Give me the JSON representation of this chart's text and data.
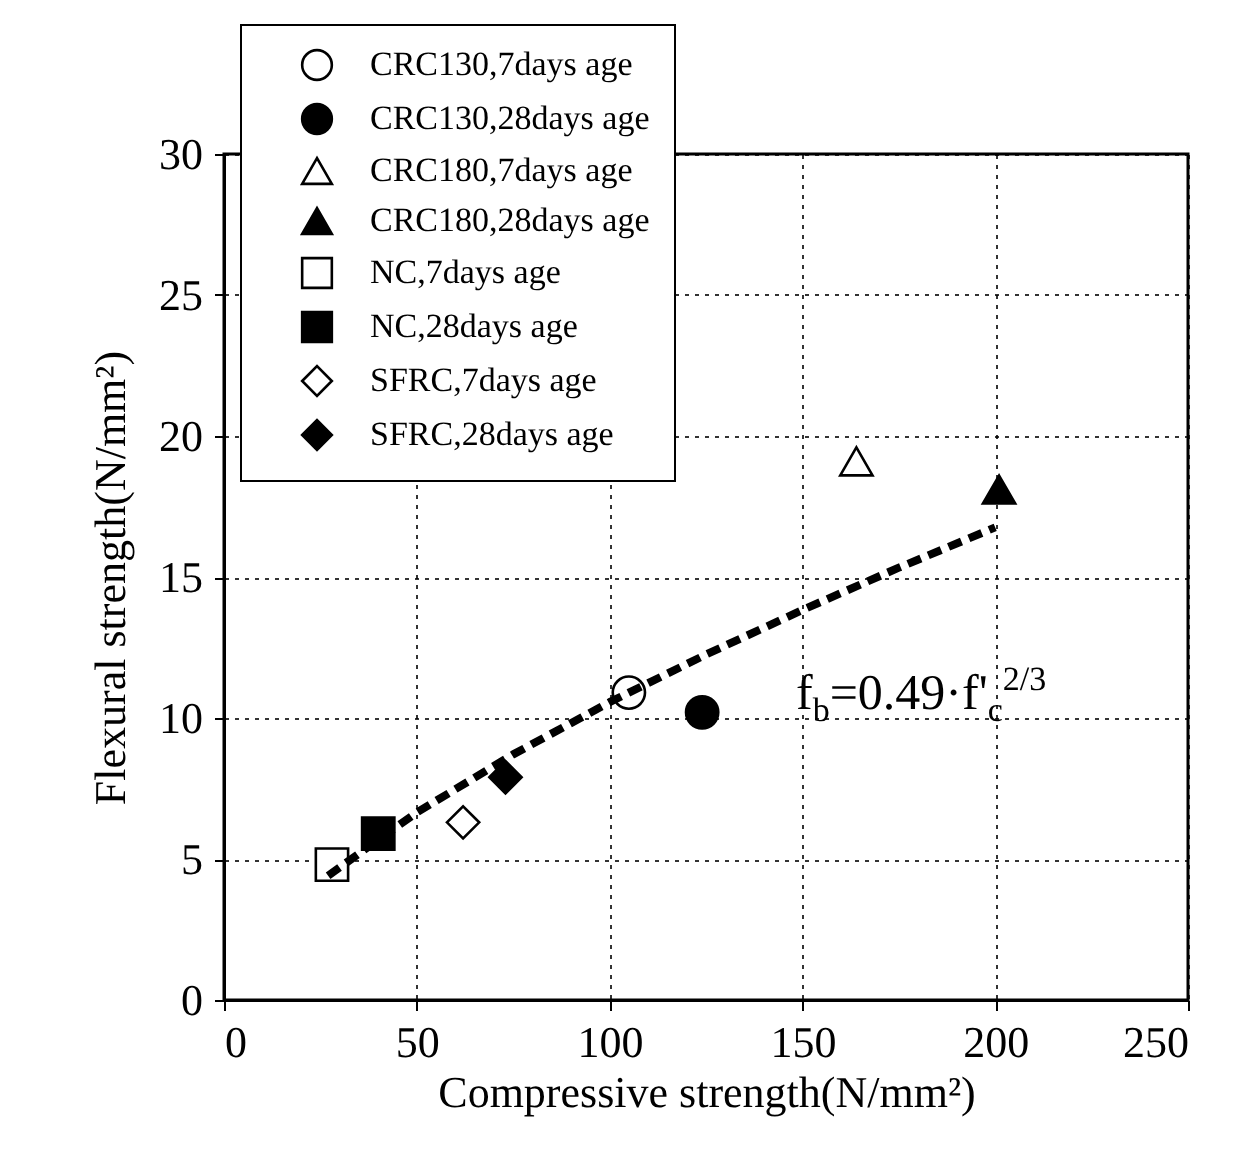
{
  "chart_data": {
    "type": "scatter",
    "xlabel": "Compressive strength(N/mm²)",
    "ylabel": "Flexural strength(N/mm²)",
    "xlim": [
      0,
      250
    ],
    "xticks": [
      0,
      50,
      100,
      150,
      200,
      250
    ],
    "ylim": [
      0,
      30
    ],
    "yticks": [
      0,
      5,
      10,
      15,
      20,
      25,
      30
    ],
    "grid": true,
    "legend": "top left",
    "annotations": [
      "f$_{b}$=0.49·f'$_{c}$$^{2/3}$"
    ],
    "series": [
      {
        "name": "CRC130,7days age",
        "color": "#ffffff",
        "marker": "circle",
        "x": [
          105
        ],
        "values": [
          10.9
        ]
      },
      {
        "name": "CRC130,28days age",
        "color": "#000000",
        "marker": "circle",
        "x": [
          124
        ],
        "values": [
          10.2
        ]
      },
      {
        "name": "CRC180,7days age",
        "color": "#ffffff",
        "marker": "triangle",
        "x": [
          164
        ],
        "values": [
          19.1
        ]
      },
      {
        "name": "CRC180,28days age",
        "color": "#000000",
        "marker": "triangle",
        "x": [
          201
        ],
        "values": [
          18.1
        ]
      },
      {
        "name": "NC,7days age",
        "color": "#ffffff",
        "marker": "square",
        "x": [
          28
        ],
        "values": [
          4.8
        ]
      },
      {
        "name": "NC,28days age",
        "color": "#000000",
        "marker": "square",
        "x": [
          40
        ],
        "values": [
          5.9
        ]
      },
      {
        "name": "SFRC,7days age",
        "color": "#ffffff",
        "marker": "diamond",
        "x": [
          62
        ],
        "values": [
          6.3
        ]
      },
      {
        "name": "SFRC,28days age",
        "color": "#000000",
        "marker": "diamond",
        "x": [
          73
        ],
        "values": [
          7.9
        ]
      },
      {
        "type": "line",
        "color": "#000000",
        "line_style": "dashed",
        "x": [
          27,
          50,
          75,
          100,
          125,
          150,
          175,
          200
        ],
        "values": [
          4.41,
          6.65,
          8.71,
          10.56,
          12.25,
          13.83,
          15.33,
          16.76
        ]
      }
    ]
  }
}
